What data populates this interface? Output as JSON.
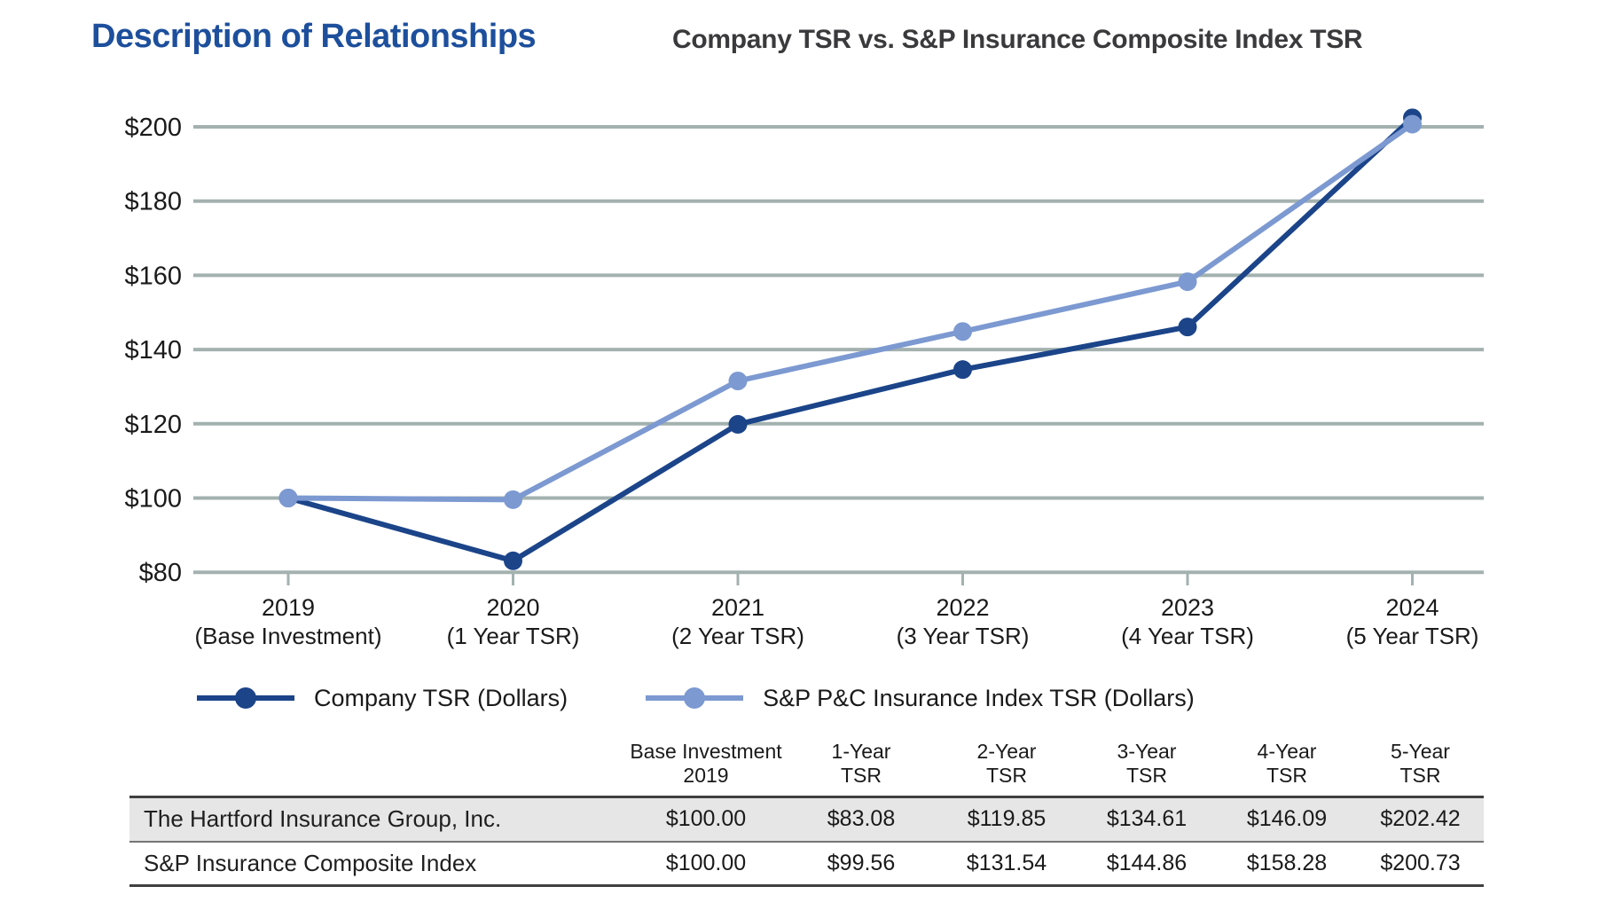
{
  "page": {
    "heading": "Description of Relationships",
    "chart_title": "Company TSR vs. S&P Insurance Composite Index TSR"
  },
  "colors": {
    "heading_blue": "#1d4f9c",
    "chart_title_gray": "#3a3a3c",
    "company_line": "#1b4489",
    "index_line": "#7c99d1",
    "gridline": "#a3b1af",
    "axis_text": "#1a1a1a",
    "table_row_highlight": "#e6e6e6"
  },
  "chart_data": {
    "type": "line",
    "title": "Company TSR vs. S&P Insurance Composite Index TSR",
    "x": [
      "2019",
      "2020",
      "2021",
      "2022",
      "2023",
      "2024"
    ],
    "x_sublabels": [
      "(Base Investment)",
      "(1 Year TSR)",
      "(2 Year TSR)",
      "(3 Year TSR)",
      "(4 Year TSR)",
      "(5 Year TSR)"
    ],
    "y_ticks": [
      200,
      180,
      160,
      140,
      120,
      100,
      80
    ],
    "y_tick_labels": [
      "$200",
      "$180",
      "$160",
      "$140",
      "$120",
      "$100",
      "$80"
    ],
    "ylim": [
      80,
      205
    ],
    "grid": "horizontal",
    "legend_position": "bottom",
    "series": [
      {
        "name": "Company TSR (Dollars)",
        "color": "#1b4489",
        "values": [
          100.0,
          83.08,
          119.85,
          134.61,
          146.09,
          202.42
        ]
      },
      {
        "name": "S&P P&C Insurance Index TSR (Dollars)",
        "color": "#7c99d1",
        "values": [
          100.0,
          99.56,
          131.54,
          144.86,
          158.28,
          200.73
        ]
      }
    ]
  },
  "table": {
    "header": [
      {
        "line1": "Base Investment",
        "line2": "2019"
      },
      {
        "line1": "1-Year",
        "line2": "TSR"
      },
      {
        "line1": "2-Year",
        "line2": "TSR"
      },
      {
        "line1": "3-Year",
        "line2": "TSR"
      },
      {
        "line1": "4-Year",
        "line2": "TSR"
      },
      {
        "line1": "5-Year",
        "line2": "TSR"
      }
    ],
    "rows": [
      {
        "label": "The Hartford Insurance Group, Inc.",
        "values": [
          "$100.00",
          "$83.08",
          "$119.85",
          "$134.61",
          "$146.09",
          "$202.42"
        ]
      },
      {
        "label": "S&P Insurance Composite Index",
        "values": [
          "$100.00",
          "$99.56",
          "$131.54",
          "$144.86",
          "$158.28",
          "$200.73"
        ]
      }
    ]
  }
}
